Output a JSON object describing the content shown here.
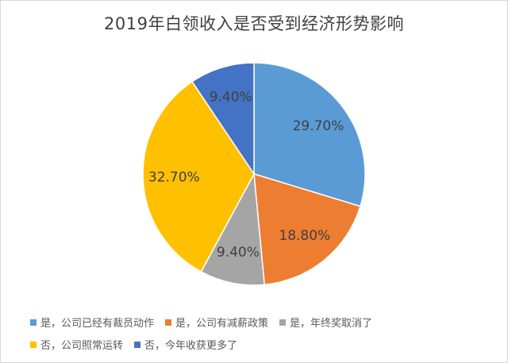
{
  "chart_data": {
    "type": "pie",
    "title": "2019年白领收入是否受到经济形势影响",
    "legend_position": "bottom",
    "slices": [
      {
        "label": "是，公司已经有裁员动作",
        "value": 29.7,
        "display": "29.70%",
        "color": "#5b9bd5"
      },
      {
        "label": "是，公司有减薪政策",
        "value": 18.8,
        "display": "18.80%",
        "color": "#ed7d31"
      },
      {
        "label": "是，年终奖取消了",
        "value": 9.4,
        "display": "9.40%",
        "color": "#a5a5a5"
      },
      {
        "label": "否，公司照常运转",
        "value": 32.7,
        "display": "32.70%",
        "color": "#ffc000"
      },
      {
        "label": "否，今年收获更多了",
        "value": 9.4,
        "display": "9.40%",
        "color": "#4472c4"
      }
    ]
  }
}
